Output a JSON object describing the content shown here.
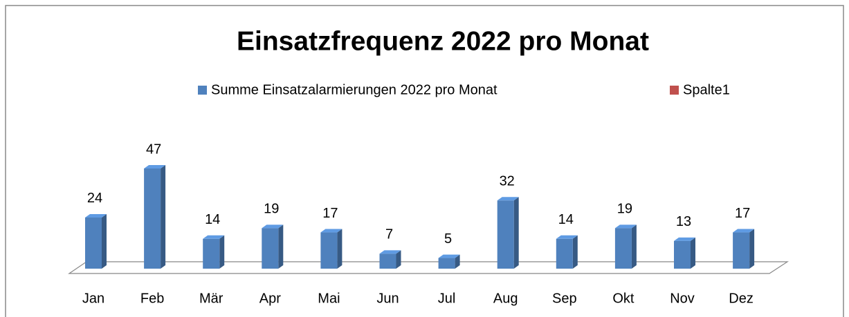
{
  "chart_data": {
    "type": "bar3d",
    "title": "Einsatzfrequenz  2022 pro Monat",
    "categories": [
      "Jan",
      "Feb",
      "Mär",
      "Apr",
      "Mai",
      "Jun",
      "Jul",
      "Aug",
      "Sep",
      "Okt",
      "Nov",
      "Dez"
    ],
    "series": [
      {
        "name": "Summe Einsatzalarmierungen 2022 pro Monat",
        "color": "#4f81bd",
        "values": [
          24,
          47,
          14,
          19,
          17,
          7,
          5,
          32,
          14,
          19,
          13,
          17
        ]
      },
      {
        "name": "Spalte1",
        "color": "#c0504d",
        "values": [
          null,
          null,
          null,
          null,
          null,
          null,
          null,
          null,
          null,
          null,
          null,
          null
        ]
      }
    ],
    "legend": "top"
  }
}
